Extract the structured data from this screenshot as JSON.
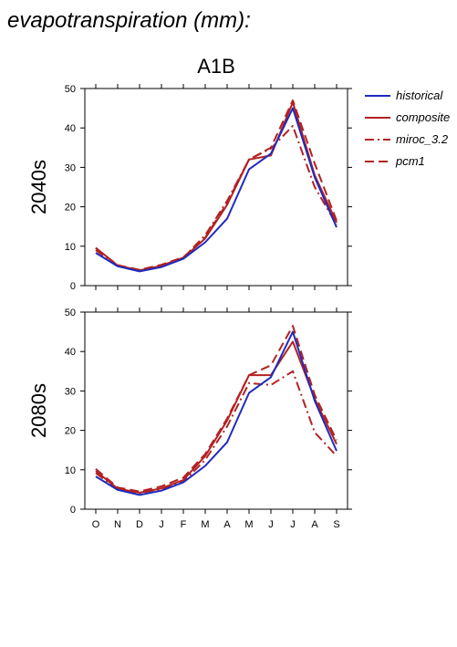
{
  "header": {
    "title": "evapotranspiration (mm):",
    "scenario": "A1B"
  },
  "legend": {
    "placement": "right",
    "items": [
      {
        "label": "historical",
        "color": "#1f2bbd",
        "dash": "solid"
      },
      {
        "label": "composite",
        "color": "#b22222",
        "dash": "solid"
      },
      {
        "label": "miroc_3.2",
        "color": "#b22222",
        "dash": "dashdot"
      },
      {
        "label": "pcm1",
        "color": "#b22222",
        "dash": "dashed"
      }
    ]
  },
  "chart_data": [
    {
      "type": "line",
      "row_label": "2040s",
      "categories": [
        "O",
        "N",
        "D",
        "J",
        "F",
        "M",
        "A",
        "M",
        "J",
        "J",
        "A",
        "S"
      ],
      "ylim": [
        0,
        50
      ],
      "yticks": [
        0,
        10,
        20,
        30,
        40,
        50
      ],
      "grid": false,
      "series": [
        {
          "name": "historical",
          "values": [
            8.3,
            4.9,
            3.6,
            4.7,
            6.8,
            11.0,
            17.0,
            29.5,
            33.5,
            45.0,
            27.5,
            14.8
          ]
        },
        {
          "name": "composite",
          "values": [
            9.6,
            5.1,
            3.9,
            5.0,
            7.0,
            12.0,
            20.5,
            32.0,
            33.0,
            46.5,
            28.0,
            16.0
          ]
        },
        {
          "name": "miroc_3.2",
          "values": [
            9.0,
            5.0,
            3.8,
            5.1,
            7.1,
            12.8,
            21.5,
            32.0,
            34.8,
            40.5,
            25.0,
            15.5
          ]
        },
        {
          "name": "pcm1",
          "values": [
            9.5,
            5.2,
            4.0,
            5.3,
            7.2,
            12.2,
            21.0,
            32.0,
            35.0,
            47.0,
            31.0,
            16.5
          ]
        }
      ]
    },
    {
      "type": "line",
      "row_label": "2080s",
      "categories": [
        "O",
        "N",
        "D",
        "J",
        "F",
        "M",
        "A",
        "M",
        "J",
        "J",
        "A",
        "S"
      ],
      "ylim": [
        0,
        50
      ],
      "yticks": [
        0,
        10,
        20,
        30,
        40,
        50
      ],
      "grid": false,
      "series": [
        {
          "name": "historical",
          "values": [
            8.3,
            4.9,
            3.6,
            4.7,
            6.8,
            11.0,
            17.0,
            29.5,
            33.5,
            45.0,
            27.5,
            14.8
          ]
        },
        {
          "name": "composite",
          "values": [
            9.7,
            5.2,
            4.2,
            5.3,
            7.4,
            13.5,
            22.5,
            34.0,
            34.0,
            42.5,
            28.0,
            16.5
          ]
        },
        {
          "name": "miroc_3.2",
          "values": [
            9.2,
            5.0,
            4.1,
            5.1,
            7.0,
            12.5,
            21.0,
            32.0,
            31.5,
            35.0,
            19.5,
            13.5
          ]
        },
        {
          "name": "pcm1",
          "values": [
            10.2,
            5.5,
            4.5,
            5.8,
            8.0,
            14.0,
            23.0,
            34.0,
            36.5,
            46.5,
            29.0,
            17.5
          ]
        }
      ]
    }
  ]
}
